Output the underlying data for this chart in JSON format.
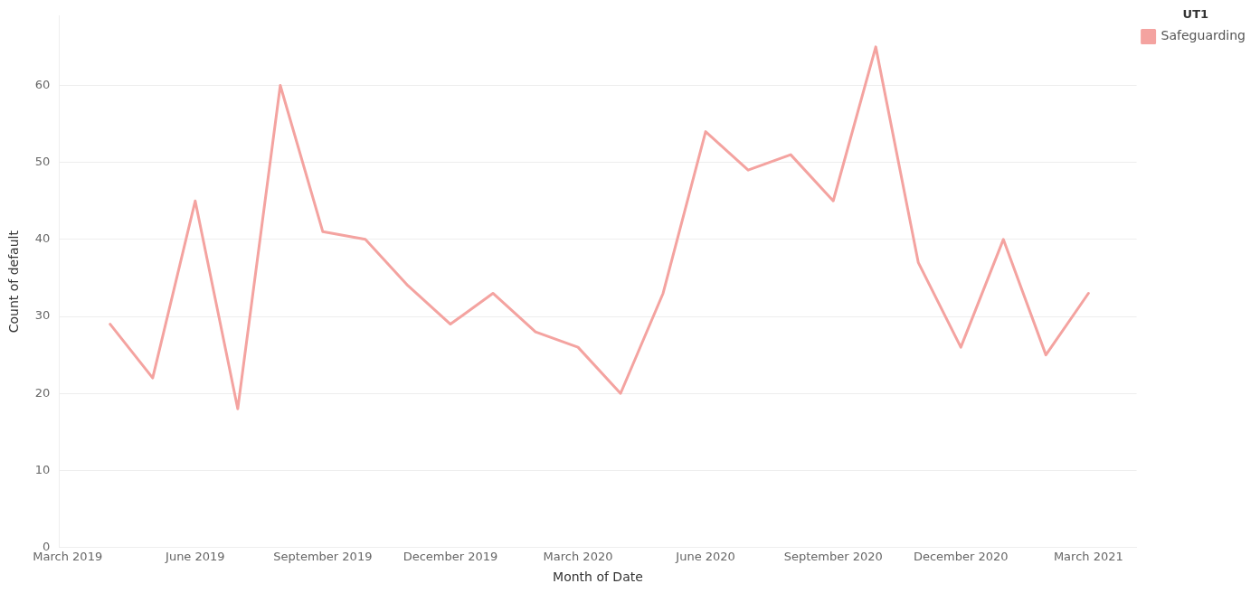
{
  "chart_data": {
    "type": "line",
    "xlabel": "Month of Date",
    "ylabel": "Count of default",
    "legend_title": "UT1",
    "x": [
      "2019-04",
      "2019-05",
      "2019-06",
      "2019-07",
      "2019-08",
      "2019-09",
      "2019-10",
      "2019-11",
      "2019-12",
      "2020-01",
      "2020-02",
      "2020-03",
      "2020-04",
      "2020-05",
      "2020-06",
      "2020-07",
      "2020-08",
      "2020-09",
      "2020-10",
      "2020-11",
      "2020-12",
      "2021-01",
      "2021-02",
      "2021-03"
    ],
    "series": [
      {
        "name": "Safeguarding",
        "color": "#f4a3a0",
        "values": [
          29,
          22,
          45,
          18,
          60,
          41,
          40,
          34,
          29,
          33,
          28,
          26,
          20,
          33,
          54,
          49,
          51,
          45,
          65,
          37,
          26,
          40,
          25,
          33
        ]
      }
    ],
    "xlim": [
      "2019-02-25",
      "2021-04-05"
    ],
    "xticks": [
      {
        "value": "2019-03",
        "label": "March 2019"
      },
      {
        "value": "2019-06",
        "label": "June 2019"
      },
      {
        "value": "2019-09",
        "label": "September 2019"
      },
      {
        "value": "2019-12",
        "label": "December 2019"
      },
      {
        "value": "2020-03",
        "label": "March 2020"
      },
      {
        "value": "2020-06",
        "label": "June 2020"
      },
      {
        "value": "2020-09",
        "label": "September 2020"
      },
      {
        "value": "2020-12",
        "label": "December 2020"
      },
      {
        "value": "2021-03",
        "label": "March 2021"
      }
    ],
    "ylim": [
      0,
      69
    ],
    "yticks": [
      0,
      10,
      20,
      30,
      40,
      50,
      60
    ],
    "grid": "y",
    "legend": "top right",
    "marker": "none",
    "line_style": "solid"
  }
}
